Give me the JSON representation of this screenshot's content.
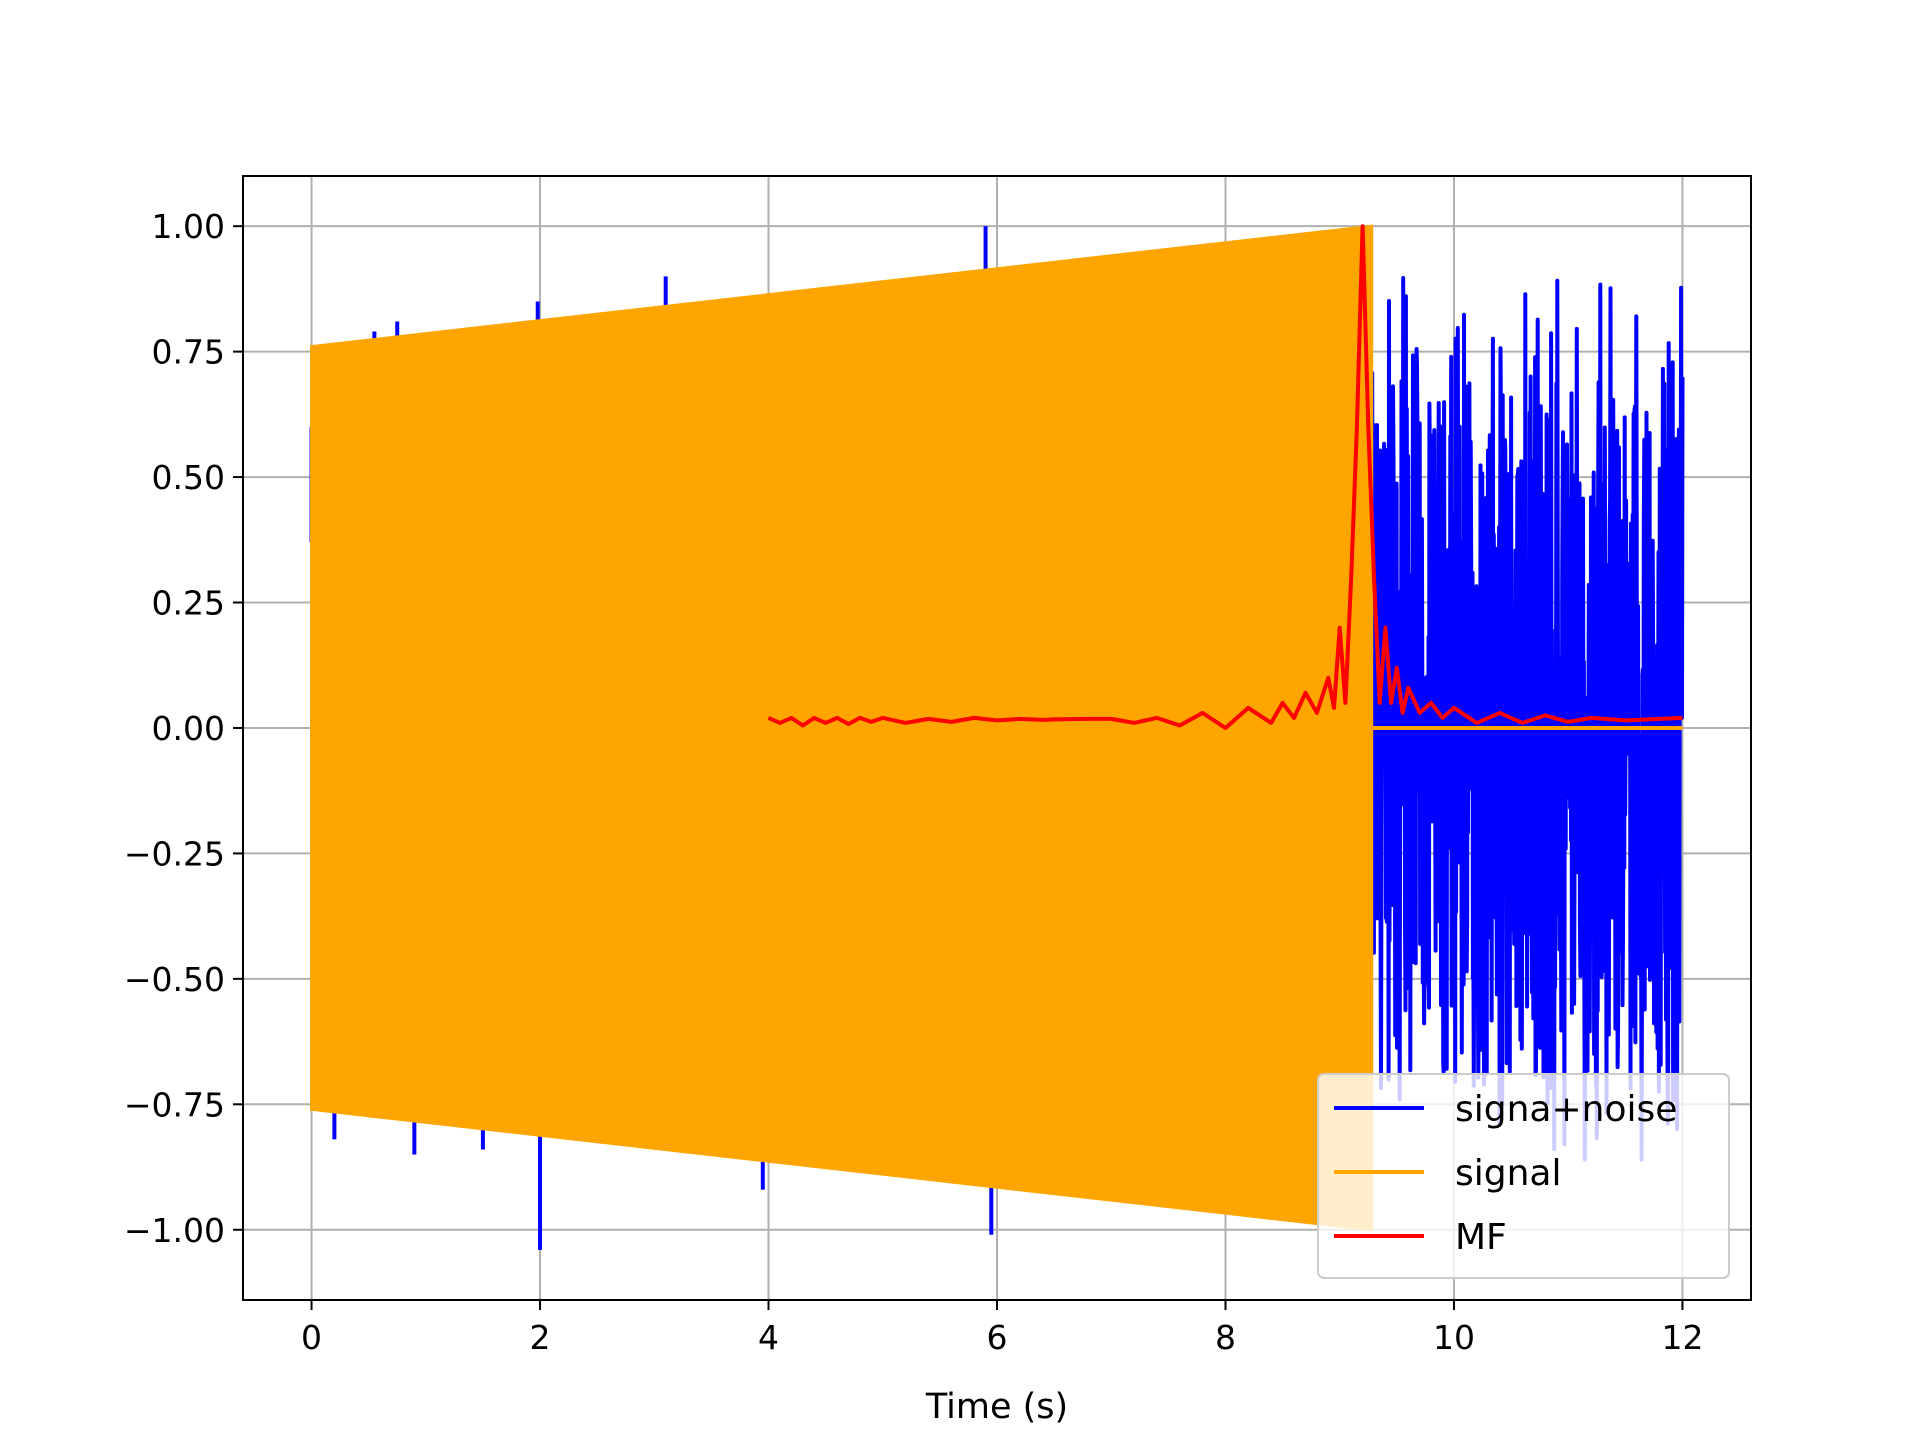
{
  "chart_data": {
    "type": "line",
    "title": "",
    "xlabel": "Time (s)",
    "ylabel": "",
    "xlim": [
      -0.6,
      12.6
    ],
    "ylim": [
      -1.14,
      1.1
    ],
    "grid": true,
    "x_ticks": [
      0,
      2,
      4,
      6,
      8,
      10,
      12
    ],
    "x_tick_labels": [
      "0",
      "2",
      "4",
      "6",
      "8",
      "10",
      "12"
    ],
    "y_ticks": [
      1.0,
      0.75,
      0.5,
      0.25,
      0.0,
      -0.25,
      -0.5,
      -0.75,
      -1.0
    ],
    "y_tick_labels": [
      "1.00",
      "0.75",
      "0.50",
      "0.25",
      "0.00",
      "−0.25",
      "−0.50",
      "−0.75",
      "−1.00"
    ],
    "legend_position": "lower right",
    "series": [
      {
        "name": "signa+noise",
        "color": "#0000ff",
        "description_points": {
          "signal_band_spikes_x": [
            0.0,
            0.2,
            0.55,
            0.75,
            0.9,
            1.5,
            1.98,
            2.0,
            3.05,
            3.1,
            3.5,
            3.95,
            4.55,
            5.3,
            5.9,
            5.95
          ],
          "signal_band_spikes_y": [
            0.37,
            -0.82,
            0.79,
            0.81,
            -0.85,
            -0.84,
            0.85,
            -1.04,
            0.84,
            0.9,
            0.85,
            -0.92,
            0.86,
            -0.88,
            1.0,
            -1.01
          ],
          "noise_x_range": [
            9.28,
            12.0
          ],
          "noise_y_range": [
            -0.86,
            0.96
          ]
        }
      },
      {
        "name": "signal",
        "color": "#ffa500",
        "envelope_x": [
          0,
          9.28
        ],
        "envelope_amplitude": [
          0.76,
          1.0
        ],
        "after_x": [
          9.28,
          12.0
        ],
        "after_value": 0.0
      },
      {
        "name": "MF",
        "color": "#ff0000",
        "x": [
          4.0,
          4.1,
          4.2,
          4.3,
          4.4,
          4.5,
          4.6,
          4.7,
          4.8,
          4.9,
          5.0,
          5.2,
          5.4,
          5.6,
          5.8,
          6.0,
          6.2,
          6.4,
          6.5,
          6.8,
          7.0,
          7.2,
          7.4,
          7.6,
          7.8,
          8.0,
          8.2,
          8.4,
          8.5,
          8.6,
          8.7,
          8.8,
          8.9,
          8.95,
          9.0,
          9.05,
          9.1,
          9.15,
          9.2,
          9.25,
          9.3,
          9.35,
          9.4,
          9.45,
          9.5,
          9.55,
          9.6,
          9.7,
          9.8,
          9.9,
          10.0,
          10.2,
          10.4,
          10.6,
          10.8,
          11.0,
          11.2,
          11.5,
          12.0
        ],
        "y": [
          0.02,
          0.01,
          0.02,
          0.005,
          0.02,
          0.01,
          0.02,
          0.008,
          0.02,
          0.012,
          0.02,
          0.01,
          0.018,
          0.012,
          0.02,
          0.015,
          0.018,
          0.016,
          0.017,
          0.018,
          0.018,
          0.01,
          0.02,
          0.005,
          0.03,
          0.0,
          0.04,
          0.01,
          0.05,
          0.02,
          0.07,
          0.03,
          0.1,
          0.04,
          0.2,
          0.05,
          0.3,
          0.6,
          1.0,
          0.6,
          0.3,
          0.05,
          0.2,
          0.05,
          0.12,
          0.03,
          0.08,
          0.03,
          0.05,
          0.02,
          0.04,
          0.01,
          0.03,
          0.01,
          0.025,
          0.012,
          0.02,
          0.015,
          0.02
        ]
      }
    ]
  }
}
